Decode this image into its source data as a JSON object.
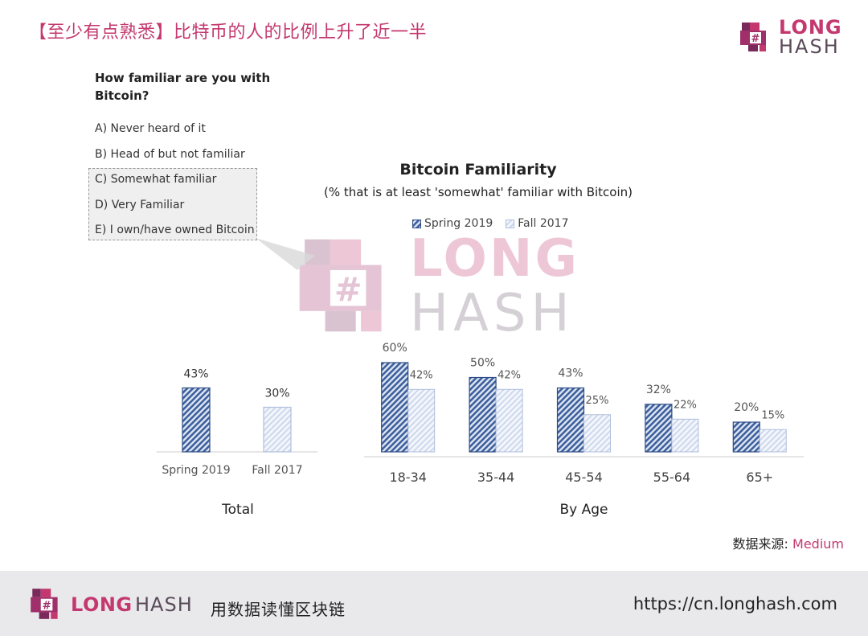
{
  "headline": "【至少有点熟悉】比特币的人的比例上升了近一半",
  "brand": {
    "long": "LONG",
    "hash": "HASH"
  },
  "question": "How familiar are you with Bitcoin?",
  "options": [
    "A) Never heard of it",
    "B) Head of but not familiar",
    "C) Somewhat familiar",
    "D) Very Familiar",
    "E) I own/have owned Bitcoin"
  ],
  "source": {
    "label": "数据来源: ",
    "value": "Medium"
  },
  "footer": {
    "long": "LONG",
    "hash": "HASH",
    "tagline": "用数据读懂区块链",
    "url": "https://cn.longhash.com"
  },
  "colors": {
    "spring": "#3d5f9c",
    "fall": "#c7d3ea",
    "accent": "#c4386f"
  },
  "chart_data": [
    {
      "type": "bar",
      "title": "",
      "categories": [
        "Spring 2019",
        "Fall 2017"
      ],
      "series": [
        {
          "name": "",
          "values": [
            43,
            30
          ]
        }
      ],
      "data_labels": [
        "43%",
        "30%"
      ],
      "xlabel": "Total"
    },
    {
      "type": "bar",
      "title": "Bitcoin Familiarity",
      "subtitle": "(% that is at least 'somewhat' familiar with Bitcoin)",
      "categories": [
        "18-34",
        "35-44",
        "45-54",
        "55-64",
        "65+"
      ],
      "series": [
        {
          "name": "Spring 2019",
          "values": [
            60,
            50,
            43,
            32,
            20
          ],
          "labels": [
            "60%",
            "50%",
            "43%",
            "32%",
            "20%"
          ]
        },
        {
          "name": "Fall 2017",
          "values": [
            42,
            42,
            25,
            22,
            15
          ],
          "labels": [
            "42%",
            "42%",
            "25%",
            "22%",
            "15%"
          ]
        }
      ],
      "xlabel": "By Age",
      "legend": "top-center"
    }
  ]
}
